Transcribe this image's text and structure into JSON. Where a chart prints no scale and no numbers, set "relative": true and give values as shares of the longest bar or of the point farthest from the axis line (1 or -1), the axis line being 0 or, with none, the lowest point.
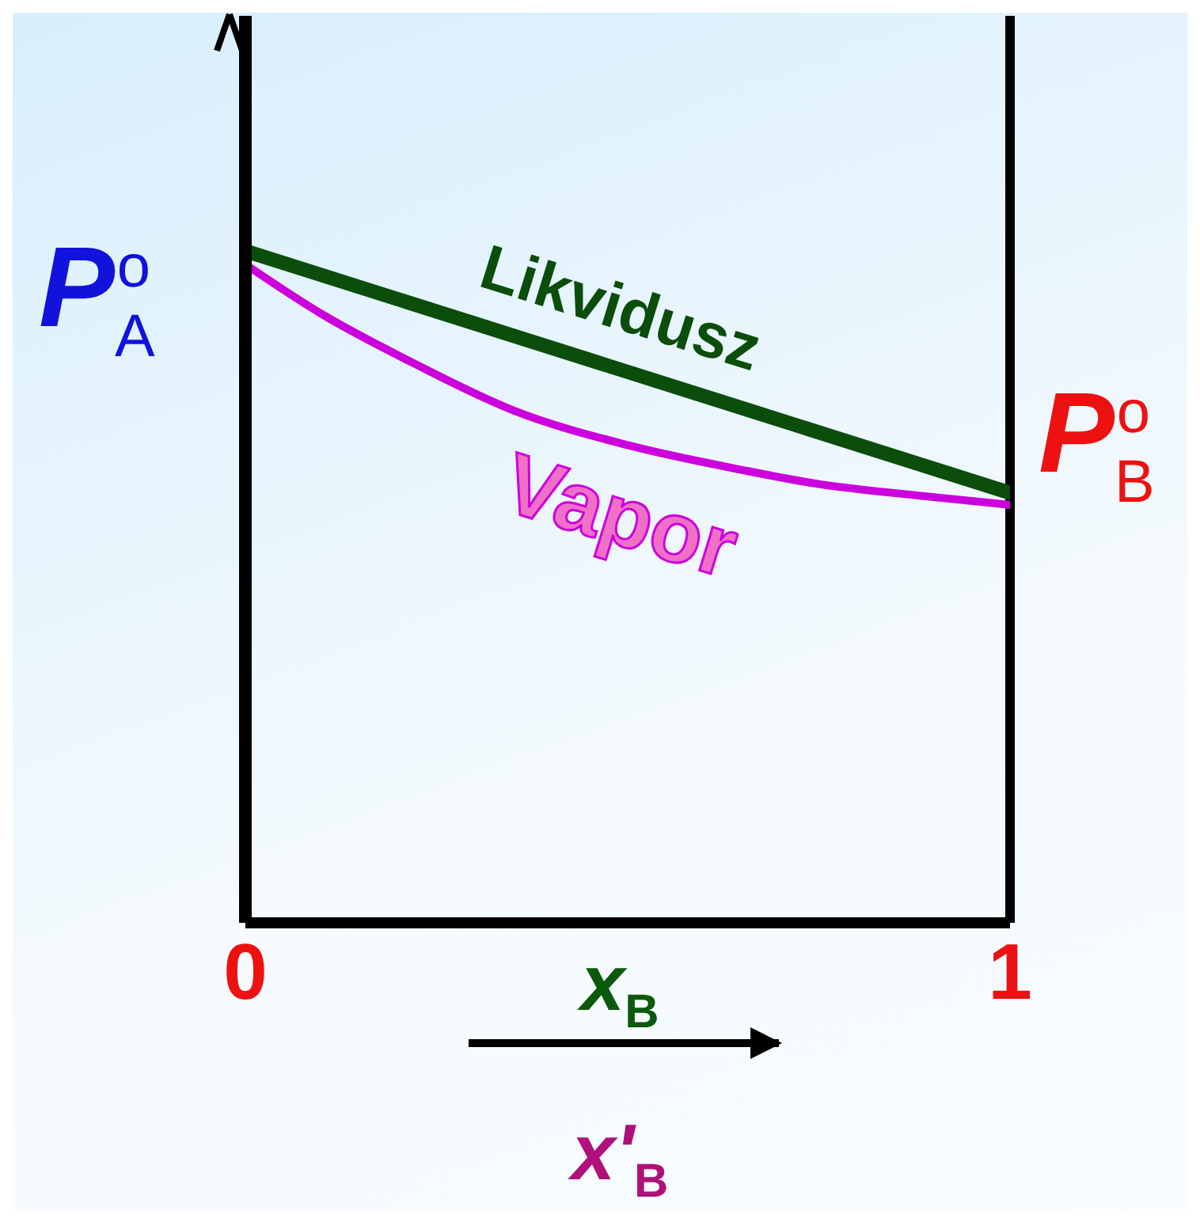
{
  "chart_data": {
    "type": "line",
    "relative": true,
    "xlabel": "x$_{B}$",
    "xlim": [
      0,
      1
    ],
    "xticks": [
      0,
      1
    ],
    "marker": "none",
    "line_style": "solid",
    "series": [
      {
        "name": "Likvidusz",
        "color": "#0b4d0b",
        "x": [
          0,
          1
        ],
        "values": [
          1,
          0.64
        ]
      },
      {
        "name": "Vapor",
        "color": "#cc00dd",
        "x": [
          0,
          0.1,
          0.22,
          0.35,
          0.5,
          0.65,
          0.75,
          0.88,
          1
        ],
        "values": [
          0.98,
          0.906,
          0.833,
          0.763,
          0.711,
          0.674,
          0.653,
          0.636,
          0.622
        ]
      }
    ],
    "ref_lines": [
      {
        "axis": "x",
        "value": 1,
        "color": "#000000"
      }
    ],
    "annotations": [
      {
        "text": "P$_{A}$$^{o}$",
        "x": 0,
        "y": 1
      },
      {
        "text": "P$_{B}$$^{o}$",
        "x": 1,
        "y": 0.64
      },
      "x'$_{B}$"
    ]
  }
}
